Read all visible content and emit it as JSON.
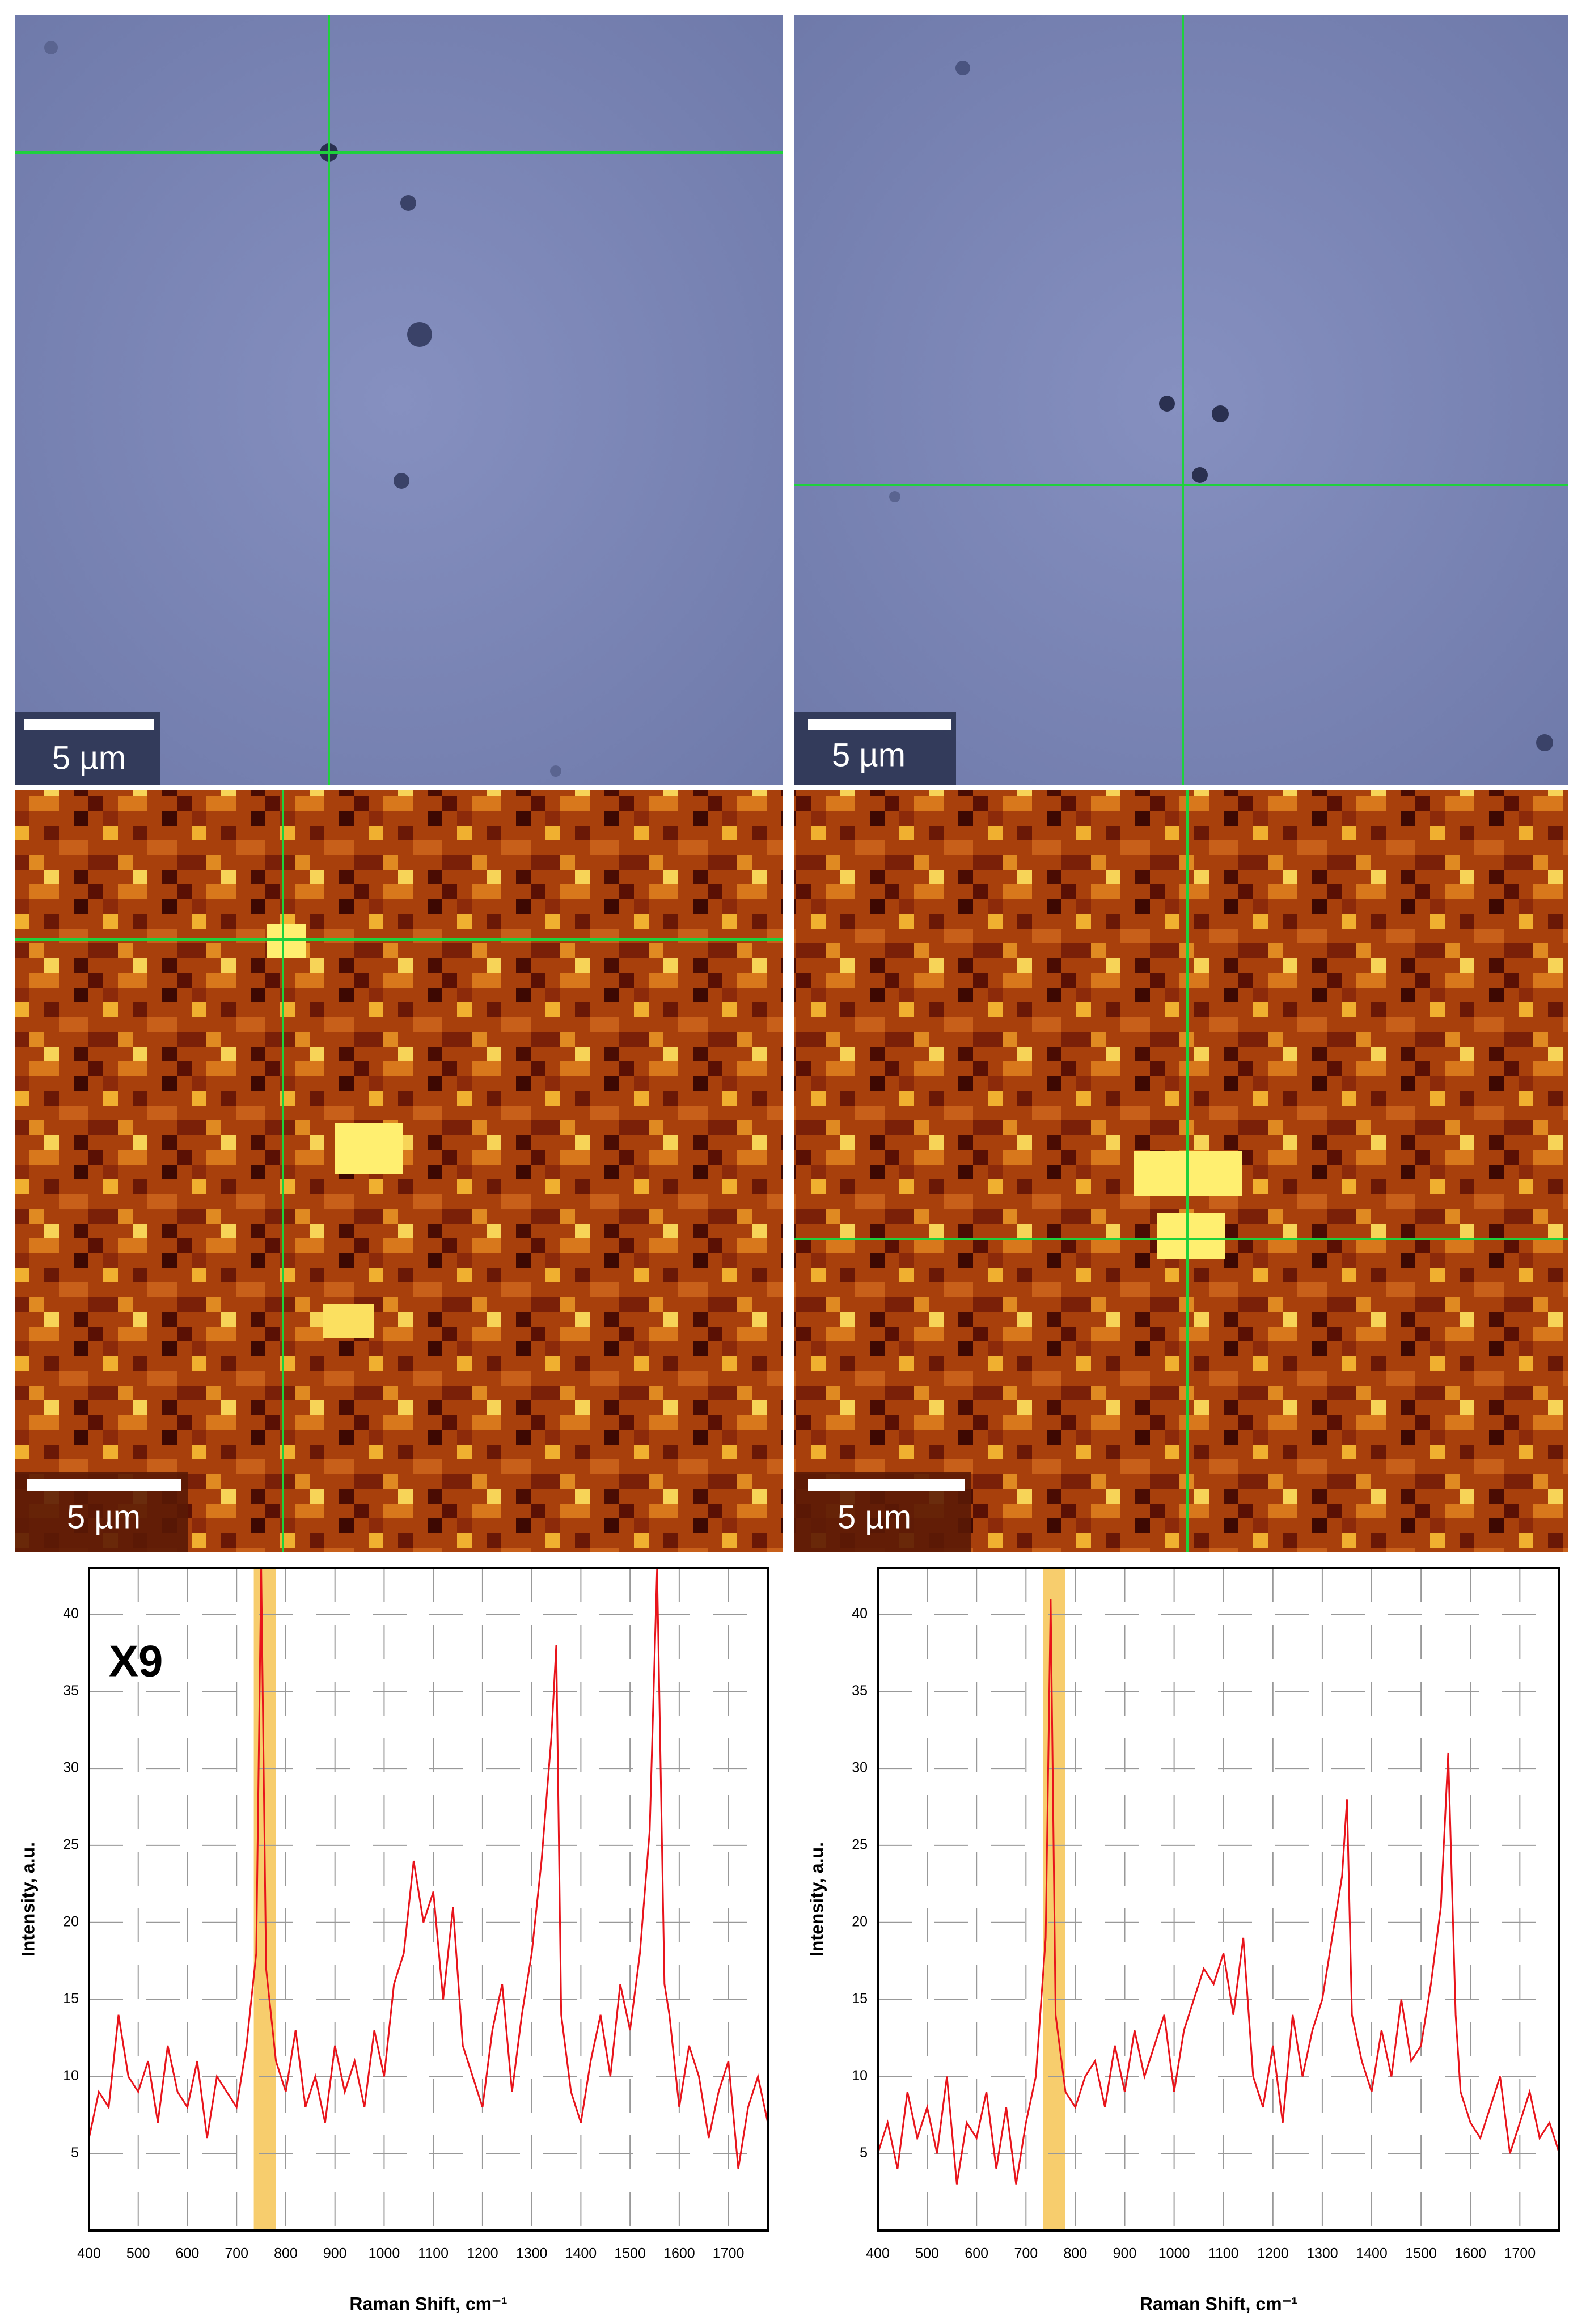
{
  "panels": [
    {
      "scale_bar": "5 µm"
    },
    {
      "scale_bar": "5 µm"
    },
    {
      "scale_bar": "5 µm"
    },
    {
      "scale_bar": "5 µm"
    }
  ],
  "chart_data": [
    {
      "type": "line",
      "annotation": "X9",
      "x_label": "Raman Shift, cm⁻¹",
      "y_label": "Intensity, a.u.",
      "xlim": [
        400,
        1780
      ],
      "ylim": [
        0,
        43
      ],
      "xticks": [
        400,
        500,
        600,
        700,
        800,
        900,
        1000,
        1100,
        1200,
        1300,
        1400,
        1500,
        1600,
        1700
      ],
      "yticks": [
        5,
        10,
        15,
        20,
        25,
        30,
        35,
        40
      ],
      "grid": true,
      "highlight_range": [
        735,
        780
      ],
      "highlight_color": "#f6c453",
      "x": [
        400,
        420,
        440,
        460,
        480,
        500,
        520,
        540,
        560,
        580,
        600,
        620,
        640,
        660,
        680,
        700,
        720,
        740,
        750,
        760,
        780,
        800,
        820,
        840,
        860,
        880,
        900,
        920,
        940,
        960,
        980,
        1000,
        1020,
        1040,
        1060,
        1080,
        1100,
        1120,
        1140,
        1160,
        1180,
        1200,
        1220,
        1240,
        1260,
        1280,
        1300,
        1320,
        1340,
        1350,
        1360,
        1380,
        1400,
        1420,
        1440,
        1460,
        1480,
        1500,
        1520,
        1540,
        1555,
        1570,
        1580,
        1600,
        1620,
        1640,
        1660,
        1680,
        1700,
        1720,
        1740,
        1760,
        1780
      ],
      "series": [
        {
          "color": "#e8141b",
          "values": [
            6,
            9,
            8,
            14,
            10,
            9,
            11,
            7,
            12,
            9,
            8,
            11,
            6,
            10,
            9,
            8,
            12,
            18,
            43,
            17,
            11,
            9,
            13,
            8,
            10,
            7,
            12,
            9,
            11,
            8,
            13,
            10,
            16,
            18,
            24,
            20,
            22,
            15,
            21,
            12,
            10,
            8,
            13,
            16,
            9,
            14,
            18,
            24,
            32,
            38,
            14,
            9,
            7,
            11,
            14,
            10,
            16,
            13,
            18,
            26,
            43,
            16,
            14,
            8,
            12,
            10,
            6,
            9,
            11,
            4,
            8,
            10,
            7
          ]
        }
      ]
    },
    {
      "type": "line",
      "x_label": "Raman Shift, cm⁻¹",
      "y_label": "Intensity, a.u.",
      "xlim": [
        400,
        1780
      ],
      "ylim": [
        0,
        43
      ],
      "xticks": [
        400,
        500,
        600,
        700,
        800,
        900,
        1000,
        1100,
        1200,
        1300,
        1400,
        1500,
        1600,
        1700
      ],
      "yticks": [
        5,
        10,
        15,
        20,
        25,
        30,
        35,
        40
      ],
      "grid": true,
      "highlight_range": [
        735,
        780
      ],
      "highlight_color": "#f6c453",
      "x": [
        400,
        420,
        440,
        460,
        480,
        500,
        520,
        540,
        560,
        580,
        600,
        620,
        640,
        660,
        680,
        700,
        720,
        740,
        750,
        760,
        780,
        800,
        820,
        840,
        860,
        880,
        900,
        920,
        940,
        960,
        980,
        1000,
        1020,
        1040,
        1060,
        1080,
        1100,
        1120,
        1140,
        1160,
        1180,
        1200,
        1220,
        1240,
        1260,
        1280,
        1300,
        1320,
        1340,
        1350,
        1360,
        1380,
        1400,
        1420,
        1440,
        1460,
        1480,
        1500,
        1520,
        1540,
        1555,
        1570,
        1580,
        1600,
        1620,
        1640,
        1660,
        1680,
        1700,
        1720,
        1740,
        1760,
        1780
      ],
      "series": [
        {
          "color": "#e8141b",
          "values": [
            5,
            7,
            4,
            9,
            6,
            8,
            5,
            10,
            3,
            7,
            6,
            9,
            4,
            8,
            3,
            7,
            10,
            19,
            41,
            14,
            9,
            8,
            10,
            11,
            8,
            12,
            9,
            13,
            10,
            12,
            14,
            9,
            13,
            15,
            17,
            16,
            18,
            14,
            19,
            10,
            8,
            12,
            7,
            14,
            10,
            13,
            15,
            19,
            23,
            28,
            14,
            11,
            9,
            13,
            10,
            15,
            11,
            12,
            16,
            21,
            31,
            14,
            9,
            7,
            6,
            8,
            10,
            5,
            7,
            9,
            6,
            7,
            5
          ]
        }
      ]
    }
  ]
}
